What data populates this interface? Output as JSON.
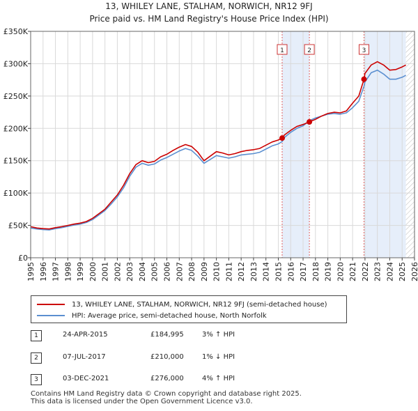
{
  "chart_data": {
    "type": "line",
    "title": "13, WHILEY LANE, STALHAM, NORWICH, NR12 9FJ",
    "subtitle": "Price paid vs. HM Land Registry's House Price Index (HPI)",
    "xlabel": "",
    "ylabel": "",
    "xlim": [
      1995,
      2026
    ],
    "ylim": [
      0,
      350000
    ],
    "yticks": [
      0,
      50000,
      100000,
      150000,
      200000,
      250000,
      300000,
      350000
    ],
    "ytick_labels": [
      "£0",
      "£50K",
      "£100K",
      "£150K",
      "£200K",
      "£250K",
      "£300K",
      "£350K"
    ],
    "xtick_labels": [
      "1995",
      "1996",
      "1997",
      "1998",
      "1999",
      "2000",
      "2001",
      "2002",
      "2003",
      "2004",
      "2005",
      "2006",
      "2007",
      "2008",
      "2009",
      "2010",
      "2011",
      "2012",
      "2013",
      "2014",
      "2015",
      "2016",
      "2017",
      "2018",
      "2019",
      "2020",
      "2021",
      "2022",
      "2023",
      "2024",
      "2025",
      "2026"
    ],
    "grid": true,
    "series": [
      {
        "name": "13, WHILEY LANE, STALHAM, NORWICH, NR12 9FJ (semi-detached house)",
        "color": "#cc0000",
        "x": [
          1995.0,
          1995.5,
          1996.0,
          1996.5,
          1997.0,
          1997.5,
          1998.0,
          1998.5,
          1999.0,
          1999.5,
          2000.0,
          2000.5,
          2001.0,
          2001.5,
          2002.0,
          2002.5,
          2003.0,
          2003.5,
          2004.0,
          2004.5,
          2005.0,
          2005.5,
          2006.0,
          2006.5,
          2007.0,
          2007.5,
          2008.0,
          2008.5,
          2009.0,
          2009.5,
          2010.0,
          2010.5,
          2011.0,
          2011.5,
          2012.0,
          2012.5,
          2013.0,
          2013.5,
          2014.0,
          2014.5,
          2015.0,
          2015.31,
          2015.5,
          2016.0,
          2016.5,
          2017.0,
          2017.51,
          2018.0,
          2018.5,
          2019.0,
          2019.5,
          2020.0,
          2020.5,
          2021.0,
          2021.5,
          2021.92,
          2022.0,
          2022.5,
          2023.0,
          2023.5,
          2024.0,
          2024.5,
          2025.0,
          2025.3
        ],
        "values": [
          48000,
          46000,
          45000,
          44500,
          46500,
          48000,
          50000,
          52000,
          53500,
          56000,
          61000,
          68000,
          75000,
          86000,
          97000,
          112000,
          130000,
          144000,
          150000,
          147000,
          149000,
          156000,
          160000,
          166000,
          171000,
          175000,
          172000,
          163000,
          150000,
          157000,
          164000,
          162000,
          159000,
          161000,
          164000,
          166000,
          167000,
          169000,
          174000,
          179000,
          182000,
          184995,
          190000,
          197000,
          203000,
          206000,
          210000,
          214000,
          219000,
          223000,
          225000,
          224000,
          227000,
          239000,
          250000,
          276000,
          285000,
          298000,
          303000,
          298000,
          290000,
          291000,
          295000,
          298000
        ]
      },
      {
        "name": "HPI: Average price, semi-detached house, North Norfolk",
        "color": "#5b8fd0",
        "x": [
          1995.0,
          1995.5,
          1996.0,
          1996.5,
          1997.0,
          1997.5,
          1998.0,
          1998.5,
          1999.0,
          1999.5,
          2000.0,
          2000.5,
          2001.0,
          2001.5,
          2002.0,
          2002.5,
          2003.0,
          2003.5,
          2004.0,
          2004.5,
          2005.0,
          2005.5,
          2006.0,
          2006.5,
          2007.0,
          2007.5,
          2008.0,
          2008.5,
          2009.0,
          2009.5,
          2010.0,
          2010.5,
          2011.0,
          2011.5,
          2012.0,
          2012.5,
          2013.0,
          2013.5,
          2014.0,
          2014.5,
          2015.0,
          2015.31,
          2015.5,
          2016.0,
          2016.5,
          2017.0,
          2017.51,
          2018.0,
          2018.5,
          2019.0,
          2019.5,
          2020.0,
          2020.5,
          2021.0,
          2021.5,
          2021.92,
          2022.0,
          2022.5,
          2023.0,
          2023.5,
          2024.0,
          2024.5,
          2025.0,
          2025.3
        ],
        "values": [
          46000,
          44500,
          43500,
          43000,
          45000,
          46500,
          48500,
          50500,
          52000,
          54500,
          59000,
          66000,
          73000,
          83000,
          94000,
          108000,
          126000,
          140000,
          146000,
          143000,
          145000,
          151000,
          155000,
          160000,
          165000,
          169000,
          166000,
          157000,
          146000,
          152000,
          158000,
          156000,
          154000,
          156000,
          159000,
          160000,
          161000,
          163000,
          168000,
          173000,
          176000,
          179600,
          186000,
          194000,
          200000,
          204000,
          212100,
          216000,
          219000,
          222000,
          223000,
          222000,
          224000,
          232000,
          242000,
          265400,
          272000,
          286000,
          290000,
          284000,
          276000,
          276000,
          279000,
          282000
        ]
      }
    ],
    "sales": [
      {
        "marker": "1",
        "x": 2015.31,
        "value": 184995
      },
      {
        "marker": "2",
        "x": 2017.51,
        "value": 210000
      },
      {
        "marker": "3",
        "x": 2021.92,
        "value": 276000
      }
    ],
    "shaded_periods": [
      [
        2015.31,
        2017.51
      ],
      [
        2021.92,
        2025.3
      ]
    ],
    "hatched_from": 2025.3
  },
  "legend": {
    "property_label": "13, WHILEY LANE, STALHAM, NORWICH, NR12 9FJ (semi-detached house)",
    "hpi_label": "HPI: Average price, semi-detached house, North Norfolk"
  },
  "sales_table": [
    {
      "num": "1",
      "date": "24-APR-2015",
      "price": "£184,995",
      "hpi": "3% ↑ HPI"
    },
    {
      "num": "2",
      "date": "07-JUL-2017",
      "price": "£210,000",
      "hpi": "1% ↓ HPI"
    },
    {
      "num": "3",
      "date": "03-DEC-2021",
      "price": "£276,000",
      "hpi": "4% ↑ HPI"
    }
  ],
  "footer": {
    "line1": "Contains HM Land Registry data © Crown copyright and database right 2025.",
    "line2": "This data is licensed under the Open Government Licence v3.0."
  }
}
